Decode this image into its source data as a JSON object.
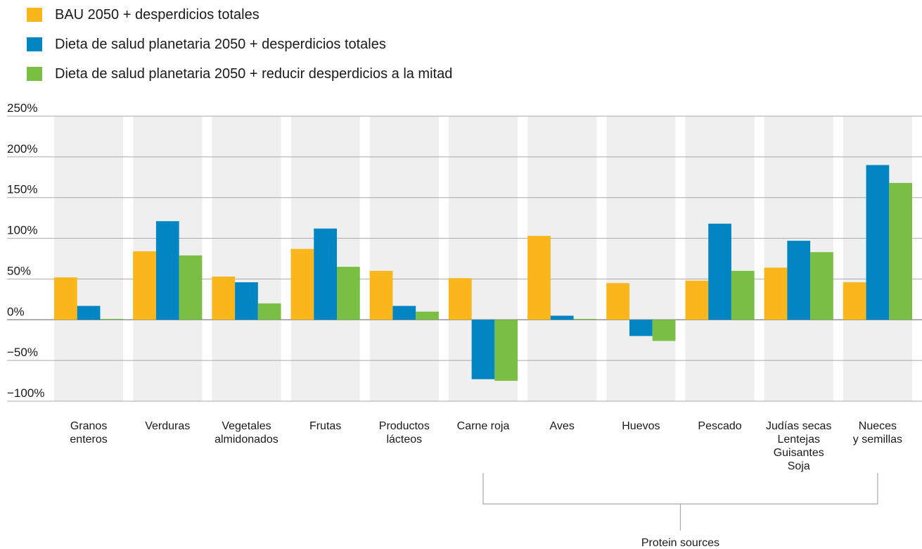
{
  "chart_data": {
    "type": "bar",
    "categories": [
      [
        "Granos",
        "enteros"
      ],
      [
        "Verduras"
      ],
      [
        "Vegetales",
        "almidonados"
      ],
      [
        "Frutas"
      ],
      [
        "Productos",
        "lácteos"
      ],
      [
        "Carne roja"
      ],
      [
        "Aves"
      ],
      [
        "Huevos"
      ],
      [
        "Pescado"
      ],
      [
        "Judías secas",
        "Lentejas",
        "Guisantes",
        "Soja"
      ],
      [
        "Nueces",
        "y semillas"
      ]
    ],
    "series": [
      {
        "name": "BAU 2050 + desperdicios totales",
        "color": "#fbb61b",
        "values": [
          52,
          84,
          53,
          87,
          60,
          51,
          103,
          45,
          48,
          64,
          46
        ]
      },
      {
        "name": "Dieta de salud planetaria 2050 + desperdicios totales",
        "color": "#0085c3",
        "values": [
          17,
          121,
          46,
          112,
          17,
          -73,
          5,
          -20,
          118,
          97,
          190
        ]
      },
      {
        "name": "Dieta de salud planetaria 2050 + reducir desperdicios a la mitad",
        "color": "#7abe43",
        "values": [
          1,
          79,
          20,
          65,
          10,
          -75,
          1,
          -26,
          60,
          83,
          168
        ]
      }
    ],
    "yticks": [
      "250%",
      "200%",
      "150%",
      "100%",
      "50%",
      "0%",
      "−50%",
      "−100%"
    ],
    "ytick_values": [
      250,
      200,
      150,
      100,
      50,
      0,
      -50,
      -100
    ],
    "ylim": [
      -100,
      250
    ],
    "grid": true,
    "legend_position": "top-left",
    "annotations": [
      {
        "text": "Protein sources",
        "from_category": 5,
        "to_category": 10
      }
    ]
  }
}
